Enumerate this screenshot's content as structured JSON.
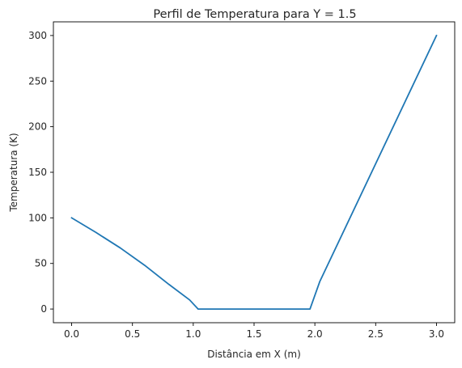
{
  "chart_data": {
    "type": "line",
    "title": "Perfil de Temperatura para Y = 1.5",
    "xlabel": "Distância em X (m)",
    "ylabel": "Temperatura (K)",
    "xlim": [
      -0.15,
      3.15
    ],
    "ylim": [
      -15,
      315
    ],
    "xticks": [
      0.0,
      0.5,
      1.0,
      1.5,
      2.0,
      2.5,
      3.0
    ],
    "xtick_labels": [
      "0.0",
      "0.5",
      "1.0",
      "1.5",
      "2.0",
      "2.5",
      "3.0"
    ],
    "yticks": [
      0,
      50,
      100,
      150,
      200,
      250,
      300
    ],
    "ytick_labels": [
      "0",
      "50",
      "100",
      "150",
      "200",
      "250",
      "300"
    ],
    "grid": false,
    "series": [
      {
        "name": "Temperatura",
        "color": "#1f77b4",
        "x": [
          0.0,
          0.2,
          0.4,
          0.6,
          0.8,
          0.97,
          1.04,
          1.96,
          2.04,
          3.0
        ],
        "y": [
          100,
          84,
          67,
          48,
          27,
          10,
          0,
          0,
          30,
          300
        ]
      }
    ]
  }
}
